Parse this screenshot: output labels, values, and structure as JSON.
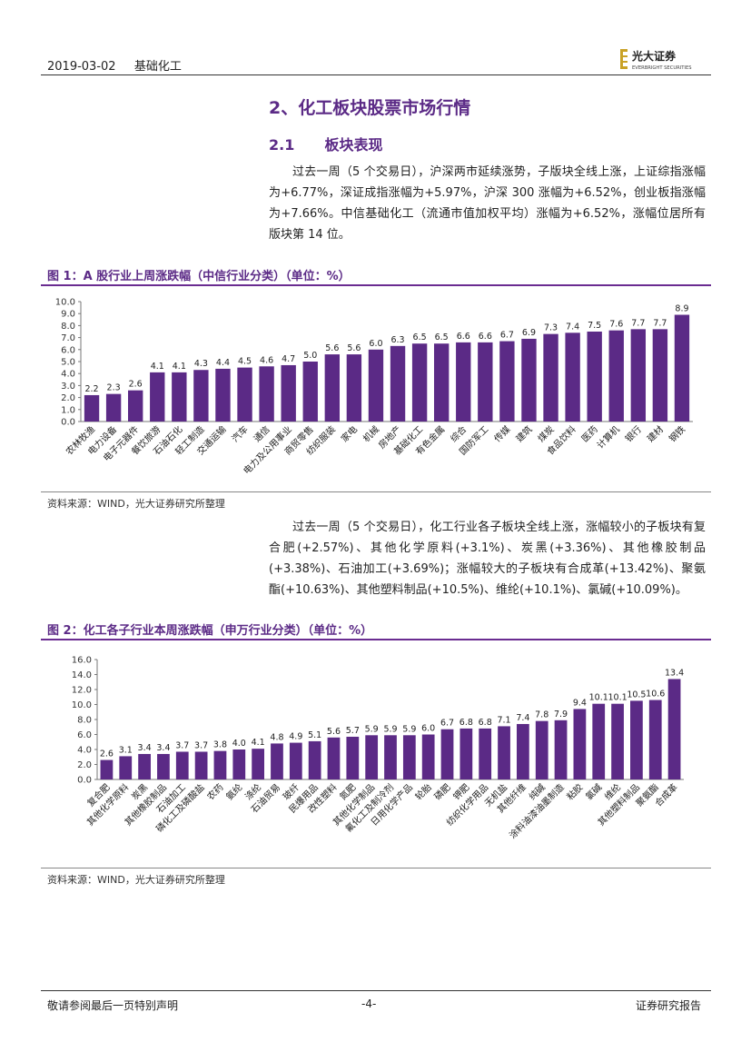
{
  "header": {
    "date": "2019-03-02",
    "sector": "基础化工",
    "logo_text": "光大证券",
    "logo_subtext": "EVERBRIGHT SECURITIES"
  },
  "section": {
    "title": "2、化工板块股票市场行情",
    "subsection_number": "2.1",
    "subsection_title": "板块表现",
    "paragraph1": "过去一周（5 个交易日），沪深两市延续涨势，子版块全线上涨，上证综指涨幅为+6.77%，深证成指涨幅为+5.97%，沪深 300 涨幅为+6.52%，创业板指涨幅为+7.66%。中信基础化工（流通市值加权平均）涨幅为+6.52%，涨幅位居所有版块第 14 位。",
    "paragraph2": "过去一周（5 个交易日），化工行业各子板块全线上涨，涨幅较小的子板块有复合肥(+2.57%)、其他化学原料(+3.1%)、炭黑(+3.36%)、其他橡胶制品(+3.38%)、石油加工(+3.69%)；涨幅较大的子板块有合成革(+13.42%)、聚氨酯(+10.63%)、其他塑料制品(+10.5%)、维纶(+10.1%)、氯碱(+10.09%)。"
  },
  "figure1": {
    "title": "图 1：A 股行业上周涨跌幅（中信行业分类）（单位：%）",
    "source": "资料来源：WIND，光大证券研究所整理"
  },
  "figure2": {
    "title": "图 2：化工各子行业本周涨跌幅（申万行业分类）（单位：%）",
    "source": "资料来源：WIND，光大证券研究所整理"
  },
  "chart_data": [
    {
      "type": "bar",
      "categories": [
        "农林牧渔",
        "电力设备",
        "电子元器件",
        "餐饮旅游",
        "石油石化",
        "轻工制造",
        "交通运输",
        "汽车",
        "通信",
        "电力及公用事业",
        "商贸零售",
        "纺织服装",
        "家电",
        "机械",
        "房地产",
        "基础化工",
        "有色金属",
        "综合",
        "国防军工",
        "传媒",
        "建筑",
        "煤炭",
        "食品饮料",
        "医药",
        "计算机",
        "银行",
        "建材",
        "钢铁"
      ],
      "values": [
        2.2,
        2.3,
        2.6,
        4.1,
        4.1,
        4.3,
        4.4,
        4.5,
        4.6,
        4.7,
        5.0,
        5.6,
        5.6,
        6.0,
        6.3,
        6.5,
        6.5,
        6.6,
        6.6,
        6.7,
        6.9,
        7.3,
        7.4,
        7.5,
        7.6,
        7.7,
        7.7,
        8.9
      ],
      "value_labels": [
        "2.2",
        "2.3",
        "2.6",
        "4.1",
        "4.1",
        "4.3",
        "4.4",
        "4.5",
        "4.6",
        "4.7",
        "5.0",
        "5.6",
        "5.6",
        "6.0",
        "6.3",
        "6.5",
        "6.5",
        "6.6",
        "6.6",
        "6.7",
        "6.9",
        "7.3",
        "7.4",
        "7.5",
        "7.6",
        "7.7",
        "7.7",
        "8.9"
      ],
      "yticks": [
        "0.0",
        "1.0",
        "2.0",
        "3.0",
        "4.0",
        "5.0",
        "6.0",
        "7.0",
        "8.0",
        "9.0",
        "10.0"
      ],
      "ylim": [
        0,
        10
      ],
      "bar_color": "#5b2a86",
      "grid": false
    },
    {
      "type": "bar",
      "categories": [
        "复合肥",
        "其他化学原料",
        "炭黑",
        "其他橡胶制品",
        "石油加工",
        "磷化工及磷酸盐",
        "农药",
        "氨纶",
        "涤纶",
        "石油贸易",
        "玻纤",
        "民爆用品",
        "改性塑料",
        "氮肥",
        "其他化学制品",
        "氟化工及制冷剂",
        "日用化学产品",
        "轮胎",
        "磷肥",
        "钾肥",
        "纺织化学用品",
        "无机盐",
        "其他纤维",
        "纯碱",
        "涂料油漆油墨制造",
        "粘胶",
        "氯碱",
        "维纶",
        "其他塑料制品",
        "聚氨酯",
        "合成革"
      ],
      "values": [
        2.6,
        3.1,
        3.4,
        3.4,
        3.7,
        3.7,
        3.8,
        4.0,
        4.1,
        4.8,
        4.9,
        5.1,
        5.6,
        5.7,
        5.9,
        5.9,
        5.9,
        6.0,
        6.7,
        6.8,
        6.8,
        7.1,
        7.4,
        7.8,
        7.9,
        9.4,
        10.1,
        10.1,
        10.5,
        10.6,
        13.4
      ],
      "value_labels": [
        "2.6",
        "3.1",
        "3.4",
        "3.4",
        "3.7",
        "3.7",
        "3.8",
        "4.0",
        "4.1",
        "4.8",
        "4.9",
        "5.1",
        "5.6",
        "5.7",
        "5.9",
        "5.9",
        "5.9",
        "6.0",
        "6.7",
        "6.8",
        "6.8",
        "7.1",
        "7.4",
        "7.8",
        "7.9",
        "9.4",
        "10.1",
        "10.1",
        "10.5",
        "10.6",
        "13.4"
      ],
      "yticks": [
        "0.0",
        "2.0",
        "4.0",
        "6.0",
        "8.0",
        "10.0",
        "12.0",
        "14.0",
        "16.0"
      ],
      "ylim": [
        0,
        16
      ],
      "bar_color": "#5b2a86",
      "grid": false
    }
  ],
  "footer": {
    "disclaimer": "敬请参阅最后一页特别声明",
    "page": "-4-",
    "report_type": "证券研究报告"
  }
}
